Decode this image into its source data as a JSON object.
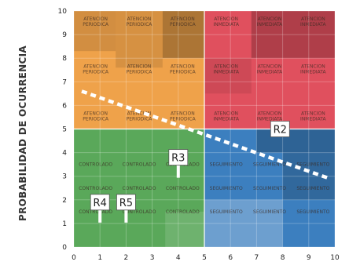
{
  "chart_data": {
    "type": "heatmap",
    "title": "",
    "xlabel": "",
    "ylabel": "PROBABILIDAD DE OCURRENCIA",
    "xlim": [
      0,
      10
    ],
    "ylim": [
      0,
      10
    ],
    "x_ticks": [
      "0",
      "1",
      "2",
      "3",
      "4",
      "5",
      "6",
      "7",
      "8",
      "9",
      "10"
    ],
    "y_ticks": [
      "0",
      "1",
      "2",
      "3",
      "4",
      "5",
      "6",
      "7",
      "8",
      "9",
      "10"
    ],
    "zones": [
      {
        "name": "CONTROLADO",
        "color": "#5aa85a",
        "x": [
          0,
          5
        ],
        "y": [
          0,
          5
        ]
      },
      {
        "name": "SEGUIMIENTO",
        "color": "#3c7fbf",
        "x": [
          5,
          10
        ],
        "y": [
          0,
          5
        ]
      },
      {
        "name": "ATENCION PERIODICA",
        "color": "#efa24a",
        "x": [
          0,
          5
        ],
        "y": [
          5,
          10
        ]
      },
      {
        "name": "ATENCION INMEDIATA",
        "color": "#e0505e",
        "x": [
          5,
          10
        ],
        "y": [
          5,
          10
        ]
      }
    ],
    "cells": [
      {
        "col": 1,
        "row": 9,
        "label": "ATENCION PERIODICA"
      },
      {
        "col": 3,
        "row": 9,
        "label": "ATENCION PERIODICA"
      },
      {
        "col": 5,
        "row": 9,
        "label": "ATENCION PERIODICA"
      },
      {
        "col": 7,
        "row": 9,
        "label": "ATENCION INMEDIATA"
      },
      {
        "col": 9,
        "row": 9,
        "label": "ATENCION INMEDIATA"
      },
      {
        "col": 11,
        "row": 9,
        "label": "ATENCION INMEDIATA"
      },
      {
        "col": 1,
        "row": 7,
        "label": "ATENCION PERIODICA"
      },
      {
        "col": 3,
        "row": 7,
        "label": "ATENCION PERIODICA"
      },
      {
        "col": 5,
        "row": 7,
        "label": "ATENCION PERIODICA"
      },
      {
        "col": 7,
        "row": 7,
        "label": "ATENCION INMEDIATA"
      },
      {
        "col": 9,
        "row": 7,
        "label": "ATENCION INMEDIATA"
      },
      {
        "col": 11,
        "row": 7,
        "label": "ATENCION INMEDIATA"
      },
      {
        "col": 1,
        "row": 5,
        "label": "ATENCION PERIODICA"
      },
      {
        "col": 3,
        "row": 5,
        "label": "ATENCION PERIODICA"
      },
      {
        "col": 5,
        "row": 5,
        "label": "ATENCION PERIODICA"
      },
      {
        "col": 7,
        "row": 5,
        "label": "ATENCION INMEDIATA"
      },
      {
        "col": 9,
        "row": 5,
        "label": "ATENCION INMEDIATA"
      },
      {
        "col": 11,
        "row": 5,
        "label": "ATENCION INMEDIATA"
      },
      {
        "col": 1,
        "row": 3,
        "label": "CONTROLADO"
      },
      {
        "col": 3,
        "row": 3,
        "label": "CONTROLADO"
      },
      {
        "col": 5,
        "row": 3,
        "label": "CONTROLADO"
      },
      {
        "col": 7,
        "row": 3,
        "label": "SEGUIMIENTO"
      },
      {
        "col": 9,
        "row": 3,
        "label": "SEGUIMIENTO"
      },
      {
        "col": 11,
        "row": 3,
        "label": "SEGUIMIENTO"
      },
      {
        "col": 1,
        "row": 2,
        "label": "CONTROLADO"
      },
      {
        "col": 3,
        "row": 2,
        "label": "CONTROLADO"
      },
      {
        "col": 5,
        "row": 2,
        "label": "CONTROLADO"
      },
      {
        "col": 7,
        "row": 2,
        "label": "SEGUIMIENTO"
      },
      {
        "col": 9,
        "row": 2,
        "label": "SEGUIMIENTO"
      },
      {
        "col": 11,
        "row": 2,
        "label": "SEGUIMIENTO"
      },
      {
        "col": 1,
        "row": 1,
        "label": "CONTROLADO"
      },
      {
        "col": 3,
        "row": 1,
        "label": "CONTROLADO"
      },
      {
        "col": 5,
        "row": 1,
        "label": "CONTROLADO"
      },
      {
        "col": 7,
        "row": 1,
        "label": "SEGUIMIENTO"
      },
      {
        "col": 9,
        "row": 1,
        "label": "SEGUIMIENTO"
      },
      {
        "col": 11,
        "row": 1,
        "label": "SEGUIMIENTO"
      }
    ],
    "threshold_line": {
      "from": [
        0.3,
        6.6
      ],
      "to": [
        9.8,
        2.9
      ],
      "style": "dashed",
      "color": "#ffffff"
    },
    "risks": [
      {
        "name": "R2",
        "x": 7.9,
        "y": 5.0
      },
      {
        "name": "R3",
        "x": 4.0,
        "y": 3.8
      },
      {
        "name": "R4",
        "x": 1.0,
        "y": 1.9
      },
      {
        "name": "R5",
        "x": 2.0,
        "y": 1.9
      }
    ],
    "grid": true
  }
}
